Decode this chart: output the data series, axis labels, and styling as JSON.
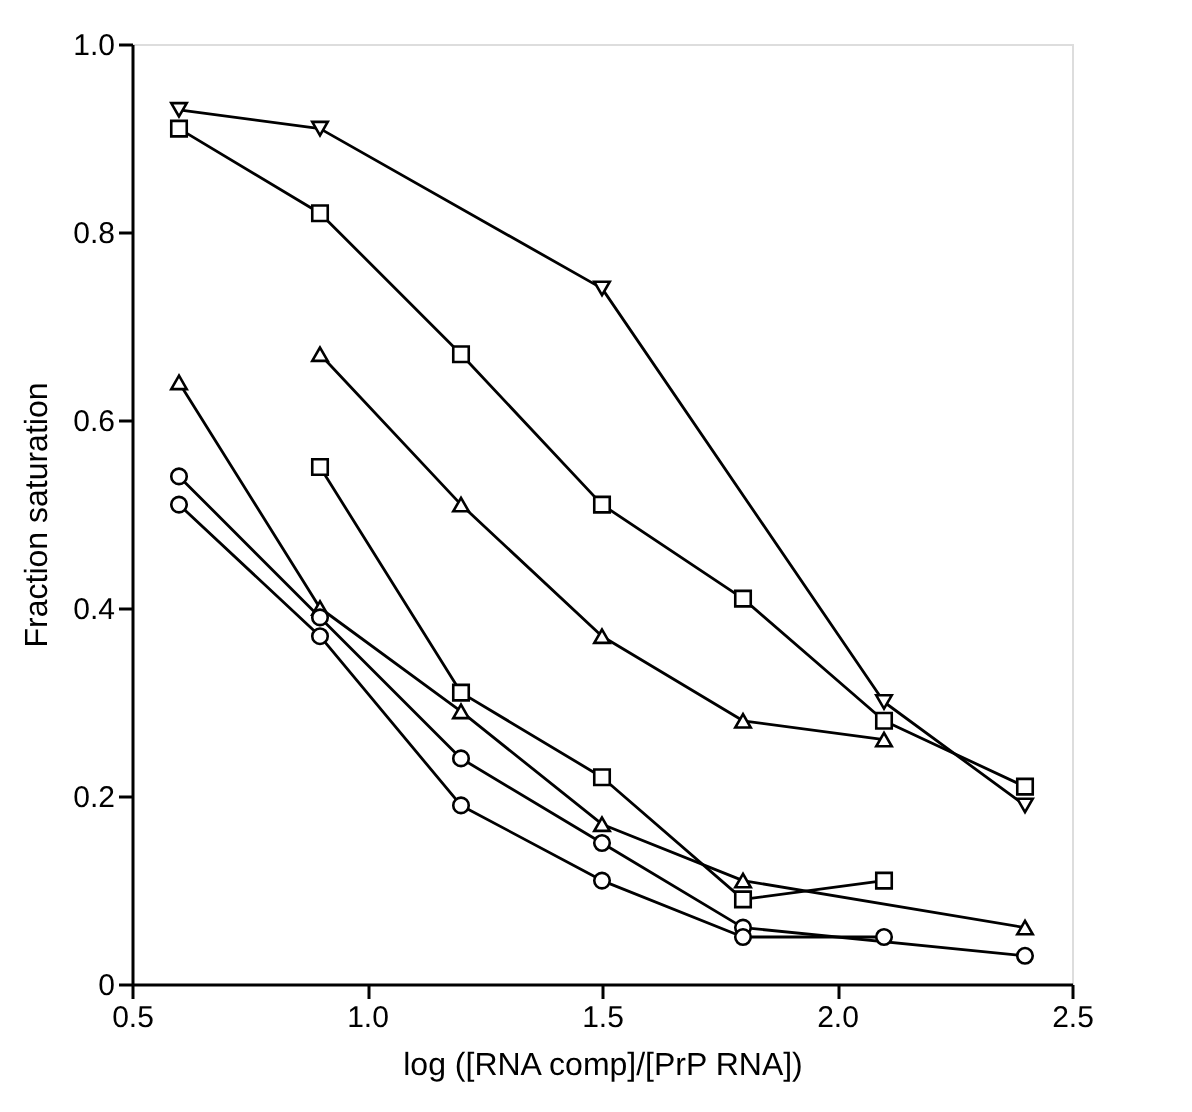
{
  "chart_data": {
    "type": "line",
    "xlabel": "log ([RNA comp]/[PrP RNA])",
    "ylabel": "Fraction saturation",
    "xlim": [
      0.5,
      2.5
    ],
    "ylim": [
      0,
      1
    ],
    "xticks": [
      0.5,
      {
        "value": 1,
        "label": "1.0"
      },
      1.5,
      {
        "value": 2,
        "label": "2.0"
      },
      2.5
    ],
    "yticks": [
      0,
      0.2,
      0.4,
      0.6,
      0.8,
      {
        "value": 1,
        "label": "1.0"
      }
    ],
    "grid": false,
    "line_style": "solid",
    "series": [
      {
        "color": "#000000",
        "marker": "triangle-down",
        "x": [
          0.6,
          0.9,
          1.5,
          2.1,
          2.4
        ],
        "values": [
          0.93,
          0.91,
          0.74,
          0.3,
          0.19
        ]
      },
      {
        "color": "#000000",
        "marker": "square",
        "x": [
          0.6,
          0.9,
          1.2,
          1.5,
          1.8,
          2.1,
          2.4
        ],
        "values": [
          0.91,
          0.82,
          0.67,
          0.51,
          0.41,
          0.28,
          0.21
        ]
      },
      {
        "color": "#000000",
        "marker": "triangle",
        "x": [
          0.9,
          1.2,
          1.5,
          1.8,
          2.1
        ],
        "values": [
          0.67,
          0.51,
          0.37,
          0.28,
          0.26
        ]
      },
      {
        "color": "#000000",
        "marker": "square",
        "x": [
          0.9,
          1.2,
          1.5,
          1.8,
          2.1
        ],
        "values": [
          0.55,
          0.31,
          0.22,
          0.09,
          0.11
        ]
      },
      {
        "color": "#000000",
        "marker": "triangle",
        "x": [
          0.6,
          0.9,
          1.2,
          1.5,
          1.8,
          2.4
        ],
        "values": [
          0.64,
          0.4,
          0.29,
          0.17,
          0.11,
          0.06
        ]
      },
      {
        "color": "#000000",
        "marker": "circle",
        "x": [
          0.6,
          0.9,
          1.2,
          1.5,
          1.8,
          2.4
        ],
        "values": [
          0.54,
          0.39,
          0.24,
          0.15,
          0.06,
          0.03
        ]
      },
      {
        "color": "#000000",
        "marker": "circle",
        "x": [
          0.6,
          0.9,
          1.2,
          1.5,
          1.8,
          2.1
        ],
        "values": [
          0.51,
          0.37,
          0.19,
          0.11,
          0.05,
          0.05
        ]
      }
    ]
  }
}
